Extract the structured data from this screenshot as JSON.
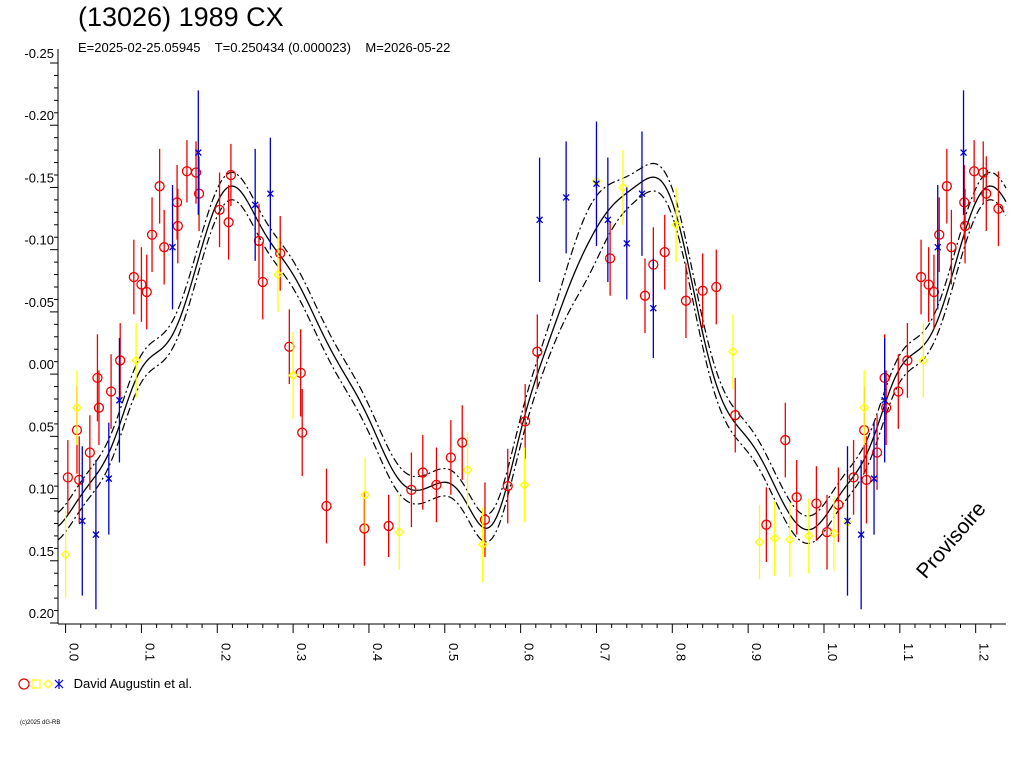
{
  "page": {
    "title": "(13026) 1989 CX",
    "subtitle": "E=2025-02-25.05945    T=0.250434 (0.000023)    M=2026-05-22",
    "watermark": "Provisoire",
    "copyright": "(c)2025 dG-RB",
    "legend_label": "David Augustin et al."
  },
  "colors": {
    "red": "#ee0000",
    "yellow": "#ffff00",
    "blue": "#0000cc",
    "curve": "#000000"
  },
  "chart_data": {
    "type": "scatter",
    "title": "(13026) 1989 CX",
    "subtitle": "E=2025-02-25.05945    T=0.250434 (0.000023)    M=2026-05-22",
    "xlabel": "",
    "ylabel": "",
    "xlim": [
      -0.01,
      1.24
    ],
    "ylim": [
      -0.25,
      0.2
    ],
    "y_inverted": true,
    "x_ticks": [
      "0.0",
      "0.1",
      "0.2",
      "0.3",
      "0.4",
      "0.5",
      "0.6",
      "0.7",
      "0.8",
      "0.9",
      "1.0",
      "1.1",
      "1.2"
    ],
    "y_ticks": [
      "-0.25",
      "-0.20",
      "-0.15",
      "-0.10",
      "-0.05",
      "0.00",
      "0.05",
      "0.10",
      "0.15",
      "0.20"
    ],
    "legend": {
      "position": "bottom-left",
      "entries": [
        {
          "name": "David Augustin et al."
        }
      ]
    },
    "series": [
      {
        "marker": "circle",
        "color": "red",
        "points": [
          [
            0.003,
            0.083,
            0.03
          ],
          [
            0.015,
            0.045,
            0.035
          ],
          [
            0.018,
            0.085,
            0.035
          ],
          [
            0.032,
            0.063,
            0.03
          ],
          [
            0.042,
            0.003,
            0.035
          ],
          [
            0.044,
            0.027,
            0.03
          ],
          [
            0.06,
            0.014,
            0.03
          ],
          [
            0.072,
            -0.011,
            0.03
          ],
          [
            0.09,
            -0.078,
            0.03
          ],
          [
            0.1,
            -0.072,
            0.03
          ],
          [
            0.107,
            -0.066,
            0.03
          ],
          [
            0.114,
            -0.112,
            0.03
          ],
          [
            0.124,
            -0.151,
            0.03
          ],
          [
            0.13,
            -0.102,
            0.03
          ],
          [
            0.147,
            -0.138,
            0.03
          ],
          [
            0.148,
            -0.119,
            0.03
          ],
          [
            0.16,
            -0.163,
            0.025
          ],
          [
            0.172,
            -0.162,
            0.025
          ],
          [
            0.176,
            -0.145,
            0.03
          ],
          [
            0.203,
            -0.132,
            0.03
          ],
          [
            0.215,
            -0.122,
            0.03
          ],
          [
            0.218,
            -0.16,
            0.025
          ],
          [
            0.255,
            -0.107,
            0.03
          ],
          [
            0.26,
            -0.074,
            0.03
          ],
          [
            0.283,
            -0.097,
            0.03
          ],
          [
            0.295,
            -0.022,
            0.03
          ],
          [
            0.31,
            -0.001,
            0.035
          ],
          [
            0.312,
            0.047,
            0.035
          ],
          [
            0.344,
            0.106,
            0.03
          ],
          [
            0.394,
            0.124,
            0.03
          ],
          [
            0.426,
            0.122,
            0.025
          ],
          [
            0.456,
            0.093,
            0.03
          ],
          [
            0.471,
            0.079,
            0.03
          ],
          [
            0.489,
            0.089,
            0.03
          ],
          [
            0.508,
            0.067,
            0.03
          ],
          [
            0.523,
            0.055,
            0.03
          ],
          [
            0.553,
            0.117,
            0.03
          ],
          [
            0.583,
            0.09,
            0.03
          ],
          [
            0.606,
            0.038,
            0.03
          ],
          [
            0.622,
            -0.018,
            0.03
          ],
          [
            0.718,
            -0.093,
            0.03
          ],
          [
            0.764,
            -0.063,
            0.03
          ],
          [
            0.775,
            -0.088,
            0.03
          ],
          [
            0.79,
            -0.098,
            0.03
          ],
          [
            0.818,
            -0.059,
            0.03
          ],
          [
            0.84,
            -0.067,
            0.03
          ],
          [
            0.858,
            -0.07,
            0.03
          ],
          [
            0.883,
            0.033,
            0.03
          ],
          [
            0.924,
            0.121,
            0.03
          ],
          [
            0.949,
            0.053,
            0.03
          ],
          [
            0.964,
            0.099,
            0.03
          ],
          [
            0.99,
            0.104,
            0.03
          ],
          [
            1.004,
            0.127,
            0.03
          ],
          [
            1.019,
            0.105,
            0.03
          ],
          [
            1.039,
            0.083,
            0.03
          ],
          [
            1.053,
            0.045,
            0.035
          ],
          [
            1.056,
            0.085,
            0.035
          ],
          [
            1.07,
            0.063,
            0.03
          ],
          [
            1.08,
            0.003,
            0.035
          ],
          [
            1.082,
            0.027,
            0.03
          ],
          [
            1.098,
            0.014,
            0.03
          ],
          [
            1.11,
            -0.011,
            0.03
          ],
          [
            1.128,
            -0.078,
            0.03
          ],
          [
            1.138,
            -0.072,
            0.03
          ],
          [
            1.145,
            -0.066,
            0.03
          ],
          [
            1.152,
            -0.112,
            0.03
          ],
          [
            1.162,
            -0.151,
            0.03
          ],
          [
            1.168,
            -0.102,
            0.03
          ],
          [
            1.185,
            -0.138,
            0.03
          ],
          [
            1.186,
            -0.119,
            0.03
          ],
          [
            1.198,
            -0.163,
            0.025
          ],
          [
            1.21,
            -0.162,
            0.025
          ],
          [
            1.214,
            -0.145,
            0.03
          ],
          [
            1.23,
            -0.133,
            0.03
          ]
        ]
      },
      {
        "marker": "diamond",
        "color": "yellow",
        "points": [
          [
            0.0,
            0.145,
            0.035
          ],
          [
            0.015,
            0.027,
            0.03
          ],
          [
            0.093,
            -0.011,
            0.03
          ],
          [
            0.28,
            -0.08,
            0.03
          ],
          [
            0.3,
            0.001,
            0.035
          ],
          [
            0.395,
            0.097,
            0.03
          ],
          [
            0.44,
            0.127,
            0.03
          ],
          [
            0.53,
            0.077,
            0.03
          ],
          [
            0.55,
            0.137,
            0.03
          ],
          [
            0.605,
            0.089,
            0.03
          ],
          [
            0.7,
            -0.155,
            0.03
          ],
          [
            0.735,
            -0.15,
            0.03
          ],
          [
            0.805,
            -0.12,
            0.03
          ],
          [
            0.88,
            -0.018,
            0.03
          ],
          [
            0.915,
            0.135,
            0.03
          ],
          [
            0.935,
            0.132,
            0.03
          ],
          [
            0.955,
            0.133,
            0.03
          ],
          [
            0.98,
            0.13,
            0.03
          ],
          [
            1.013,
            0.128,
            0.03
          ],
          [
            1.031,
            0.119,
            0.035
          ],
          [
            1.053,
            0.027,
            0.03
          ],
          [
            1.131,
            -0.011,
            0.03
          ]
        ]
      },
      {
        "marker": "asterisk",
        "color": "blue",
        "points": [
          [
            0.022,
            0.118,
            0.06
          ],
          [
            0.04,
            0.129,
            0.06
          ],
          [
            0.057,
            0.084,
            0.045
          ],
          [
            0.071,
            0.021,
            0.05
          ],
          [
            0.141,
            -0.102,
            0.05
          ],
          [
            0.175,
            -0.178,
            0.05
          ],
          [
            0.25,
            -0.136,
            0.045
          ],
          [
            0.27,
            -0.145,
            0.045
          ],
          [
            0.625,
            -0.124,
            0.05
          ],
          [
            0.66,
            -0.142,
            0.045
          ],
          [
            0.7,
            -0.153,
            0.05
          ],
          [
            0.715,
            -0.124,
            0.05
          ],
          [
            0.74,
            -0.105,
            0.045
          ],
          [
            0.76,
            -0.145,
            0.05
          ],
          [
            0.775,
            -0.053,
            0.04
          ],
          [
            1.031,
            0.118,
            0.06
          ],
          [
            1.049,
            0.129,
            0.06
          ],
          [
            1.066,
            0.084,
            0.045
          ],
          [
            1.08,
            0.021,
            0.05
          ],
          [
            1.15,
            -0.102,
            0.05
          ],
          [
            1.184,
            -0.178,
            0.05
          ]
        ]
      }
    ],
    "curve": {
      "mean": -0.0072,
      "harmonics": [
        [
          -0.0047,
          0.0209,
          0.0068,
          -0.0047,
          -0.0015,
          0.0047,
          0.0138,
          -0.0012
        ],
        [
          -0.0007,
          -0.0168,
          -0.0165,
          -0.0006,
          -0.0038,
          -0.0004,
          0.0005,
          0.0012
        ],
        [
          0.1049,
          -0.0067,
          -0.0041,
          0.0003,
          -0.0069,
          0.0002,
          0.0005,
          0.0006
        ],
        [
          0.0038,
          0.0049,
          0.0019,
          -0.0021,
          -0.0027,
          -0.0012,
          -0.0011,
          0.0001
        ]
      ],
      "band_offset": 0.011,
      "band_widen": [
        0.69,
        0.025,
        0.016
      ]
    }
  }
}
